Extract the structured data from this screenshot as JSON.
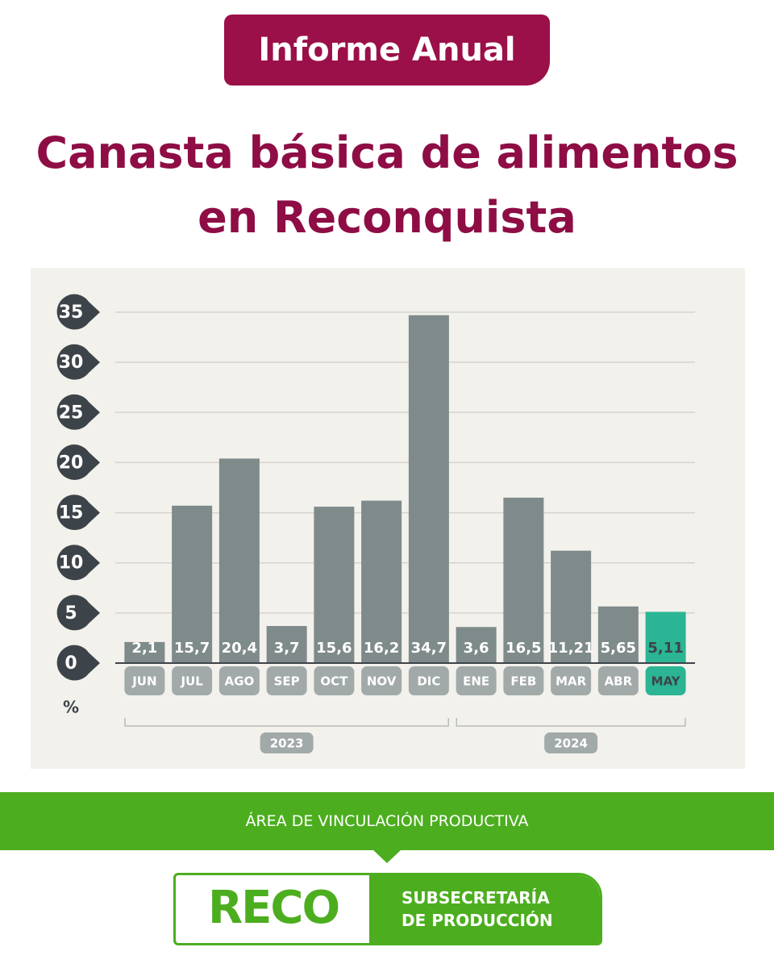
{
  "header": {
    "badge": "Informe Anual"
  },
  "chart_data": {
    "type": "bar",
    "title": "Canasta básica de alimentos en Reconquista",
    "y_label": "%",
    "categories": [
      "JUN",
      "JUL",
      "AGO",
      "SEP",
      "OCT",
      "NOV",
      "DIC",
      "ENE",
      "FEB",
      "MAR",
      "ABR",
      "MAY"
    ],
    "years": [
      "2023",
      "2023",
      "2023",
      "2023",
      "2023",
      "2023",
      "2023",
      "2024",
      "2024",
      "2024",
      "2024",
      "2024"
    ],
    "values": [
      2.1,
      15.7,
      20.4,
      3.7,
      15.6,
      16.2,
      34.7,
      3.6,
      16.5,
      11.21,
      5.65,
      5.11
    ],
    "value_labels": [
      "2,1",
      "15,7",
      "20,4",
      "3,7",
      "15,6",
      "16,2",
      "34,7",
      "3,6",
      "16,5",
      "11,21",
      "5,65",
      "5,11"
    ],
    "colors": [
      "#7f8b8a",
      "#7f8b8a",
      "#7f8b8a",
      "#7f8b8a",
      "#7f8b8a",
      "#7f8b8a",
      "#7f8b8a",
      "#7f8b8a",
      "#7f8b8a",
      "#7f8b8a",
      "#7f8b8a",
      "#2bb594"
    ],
    "ylim": [
      0,
      35
    ],
    "yticks": [
      0,
      5,
      10,
      15,
      20,
      25,
      30,
      35
    ],
    "grid": true
  },
  "footer": {
    "area": "ÁREA DE VINCULACIÓN PRODUCTIVA",
    "logo": "RECO",
    "org_line1": "SUBSECRETARÍA",
    "org_line2": "DE PRODUCCIÓN"
  }
}
